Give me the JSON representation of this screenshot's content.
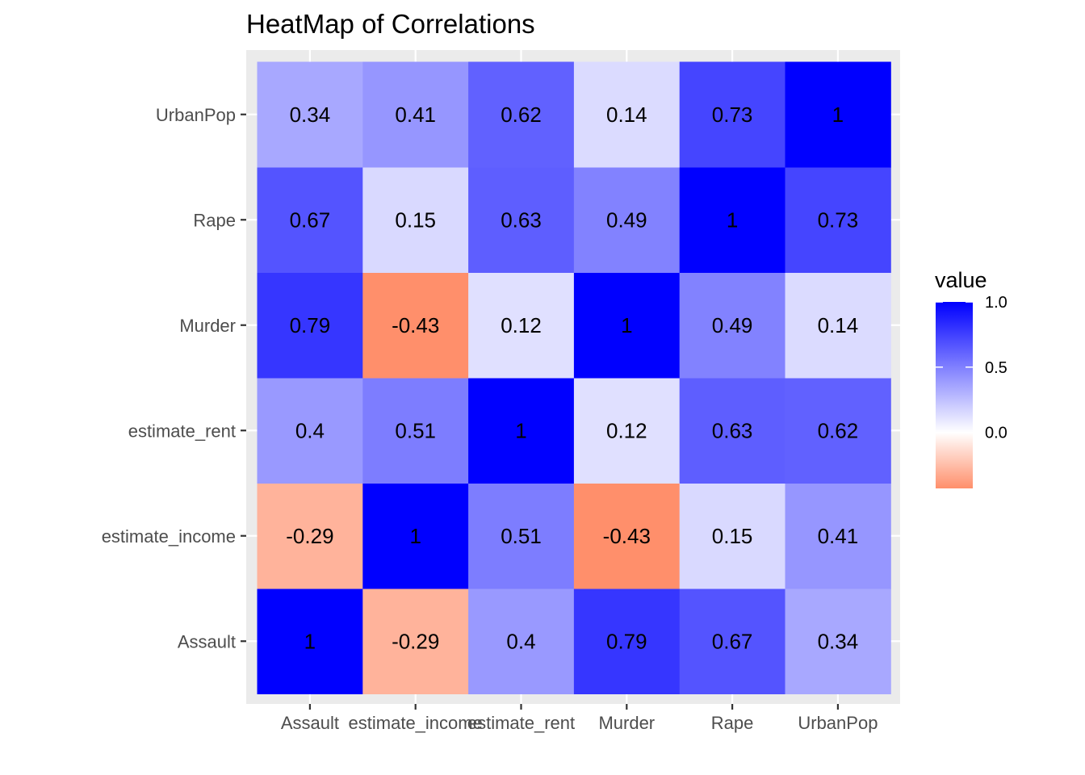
{
  "chart_data": {
    "type": "heatmap",
    "title": "HeatMap of Correlations",
    "x_categories": [
      "Assault",
      "estimate_income",
      "estimate_rent",
      "Murder",
      "Rape",
      "UrbanPop"
    ],
    "y_categories": [
      "Assault",
      "estimate_income",
      "estimate_rent",
      "Murder",
      "Rape",
      "UrbanPop"
    ],
    "values": [
      [
        1,
        -0.29,
        0.4,
        0.79,
        0.67,
        0.34
      ],
      [
        -0.29,
        1,
        0.51,
        -0.43,
        0.15,
        0.41
      ],
      [
        0.4,
        0.51,
        1,
        0.12,
        0.63,
        0.62
      ],
      [
        0.79,
        -0.43,
        0.12,
        1,
        0.49,
        0.14
      ],
      [
        0.67,
        0.15,
        0.63,
        0.49,
        1,
        0.73
      ],
      [
        0.34,
        0.41,
        0.62,
        0.14,
        0.73,
        1
      ]
    ],
    "value_labels": [
      [
        "1",
        "-0.29",
        "0.4",
        "0.79",
        "0.67",
        "0.34"
      ],
      [
        "-0.29",
        "1",
        "0.51",
        "-0.43",
        "0.15",
        "0.41"
      ],
      [
        "0.4",
        "0.51",
        "1",
        "0.12",
        "0.63",
        "0.62"
      ],
      [
        "0.79",
        "-0.43",
        "0.12",
        "1",
        "0.49",
        "0.14"
      ],
      [
        "0.67",
        "0.15",
        "0.63",
        "0.49",
        "1",
        "0.73"
      ],
      [
        "0.34",
        "0.41",
        "0.62",
        "0.14",
        "0.73",
        "1"
      ]
    ],
    "legend": {
      "title": "value",
      "placement": "right",
      "range": [
        -0.43,
        1.0
      ],
      "ticks": [
        {
          "value": 0.0,
          "label": "0.0"
        },
        {
          "value": 0.5,
          "label": "0.5"
        },
        {
          "value": 1.0,
          "label": "1.0"
        }
      ]
    },
    "colors": {
      "low": "#ff8f6b",
      "mid": "#ffffff",
      "high": "#0000ff",
      "panel_background": "#ebebeb",
      "grid": "#ffffff"
    }
  }
}
